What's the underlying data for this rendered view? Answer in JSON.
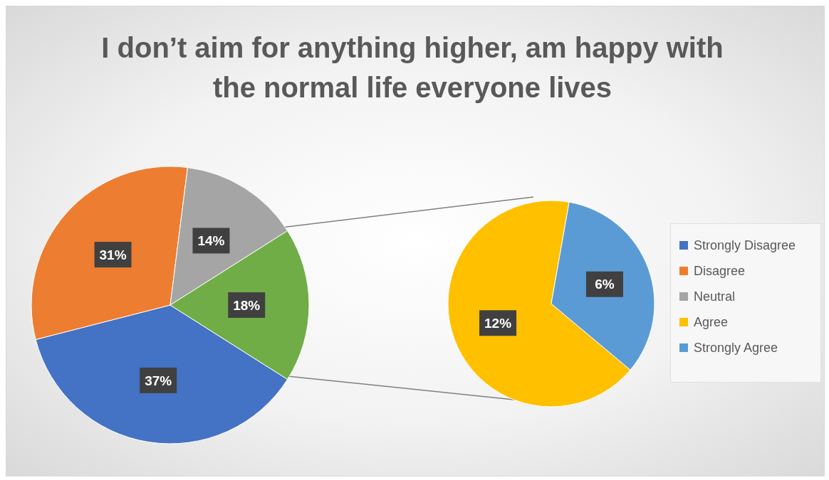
{
  "chart_data": [
    {
      "type": "pie",
      "title": "I don’t aim for anything higher, am happy with the normal life everyone lives",
      "categories": [
        "Strongly Disagree",
        "Disagree",
        "Neutral",
        null
      ],
      "values": [
        37,
        31,
        14,
        18
      ],
      "colors": [
        "#4472c4",
        "#ed7d31",
        "#a5a5a5",
        "#70ad47"
      ],
      "value_labels": [
        "37%",
        "31%",
        "14%",
        "18%"
      ],
      "legend": "right"
    },
    {
      "type": "pie",
      "categories": [
        "Agree",
        "Strongly Agree"
      ],
      "values": [
        12,
        6
      ],
      "colors": [
        "#ffc000",
        "#5b9bd5"
      ],
      "value_labels": [
        "12%",
        "6%"
      ],
      "legend": "right"
    }
  ]
}
